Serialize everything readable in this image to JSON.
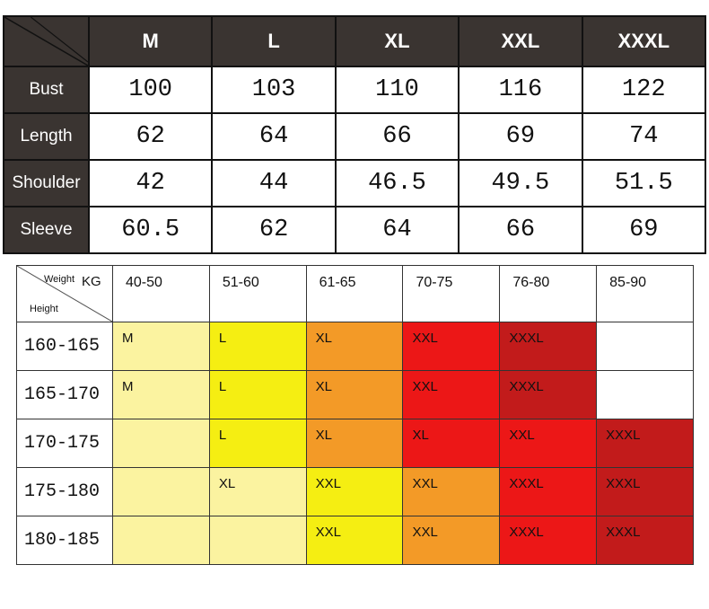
{
  "size_chart": {
    "sizes": [
      "M",
      "L",
      "XL",
      "XXL",
      "XXXL"
    ],
    "rows": [
      {
        "label": "Bust",
        "values": [
          "100",
          "103",
          "110",
          "116",
          "122"
        ]
      },
      {
        "label": "Length",
        "values": [
          "62",
          "64",
          "66",
          "69",
          "74"
        ]
      },
      {
        "label": "Shoulder",
        "values": [
          "42",
          "44",
          "46.5",
          "49.5",
          "51.5"
        ]
      },
      {
        "label": "Sleeve",
        "values": [
          "60.5",
          "62",
          "64",
          "66",
          "69"
        ]
      }
    ]
  },
  "weight_height_chart": {
    "corner": {
      "weight_label": "Weight",
      "kg_label": "KG",
      "height_label": "Height"
    },
    "weight_ranges": [
      "40-50",
      "51-60",
      "61-65",
      "70-75",
      "76-80",
      "85-90"
    ],
    "rows": [
      {
        "height": "160-165",
        "cells": [
          {
            "size": "M",
            "color": "pale"
          },
          {
            "size": "L",
            "color": "yellow"
          },
          {
            "size": "XL",
            "color": "orange"
          },
          {
            "size": "XXL",
            "color": "red"
          },
          {
            "size": "XXXL",
            "color": "dkred"
          },
          {
            "size": "",
            "color": "white"
          }
        ]
      },
      {
        "height": "165-170",
        "cells": [
          {
            "size": "M",
            "color": "pale"
          },
          {
            "size": "L",
            "color": "yellow"
          },
          {
            "size": "XL",
            "color": "orange"
          },
          {
            "size": "XXL",
            "color": "red"
          },
          {
            "size": "XXXL",
            "color": "dkred"
          },
          {
            "size": "",
            "color": "white"
          }
        ]
      },
      {
        "height": "170-175",
        "cells": [
          {
            "size": "",
            "color": "pale"
          },
          {
            "size": "L",
            "color": "yellow"
          },
          {
            "size": "XL",
            "color": "orange"
          },
          {
            "size": "XL",
            "color": "red"
          },
          {
            "size": "XXL",
            "color": "red"
          },
          {
            "size": "XXXL",
            "color": "dkred"
          }
        ]
      },
      {
        "height": "175-180",
        "cells": [
          {
            "size": "",
            "color": "pale"
          },
          {
            "size": "XL",
            "color": "pale"
          },
          {
            "size": "XXL",
            "color": "yellow"
          },
          {
            "size": "XXL",
            "color": "orange"
          },
          {
            "size": "XXXL",
            "color": "red"
          },
          {
            "size": "XXXL",
            "color": "dkred"
          }
        ]
      },
      {
        "height": "180-185",
        "cells": [
          {
            "size": "",
            "color": "pale"
          },
          {
            "size": "",
            "color": "pale"
          },
          {
            "size": "XXL",
            "color": "yellow"
          },
          {
            "size": "XXL",
            "color": "orange"
          },
          {
            "size": "XXXL",
            "color": "red"
          },
          {
            "size": "XXXL",
            "color": "dkred"
          }
        ]
      }
    ],
    "colors": {
      "pale": "#fbf3a0",
      "yellow": "#f5ee12",
      "orange": "#f39a27",
      "red": "#ec1717",
      "dkred": "#c21b1b",
      "white": "#ffffff"
    }
  }
}
